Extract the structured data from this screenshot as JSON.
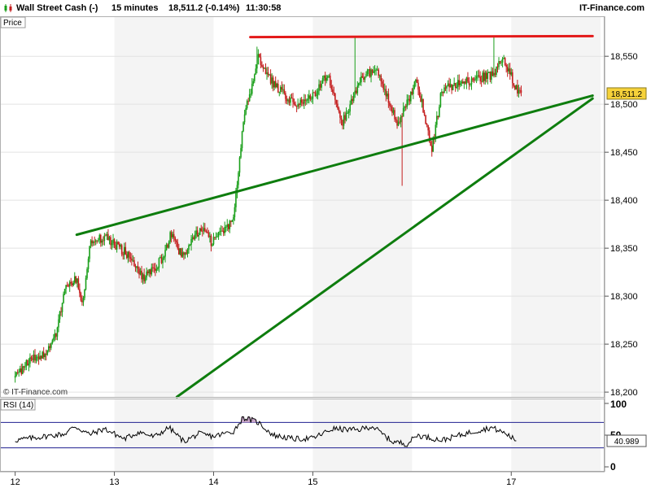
{
  "title_bar": {
    "instrument": "Wall Street Cash (-)",
    "timeframe": "15 minutes",
    "last_quote": "18,511.2 (-0.14%)",
    "time": "11:30:58",
    "brand": "IT-Finance.com"
  },
  "colors": {
    "up_candle": "#1a9f1a",
    "down_candle": "#c41e1e",
    "support_lines": "#0e7d0e",
    "resistance_line": "#e31a1a",
    "rsi_line": "#000000",
    "rsi_band_lines": "#1f1f8f",
    "rsi_overbought_fill": "#c9a6c9",
    "price_tag_bg": "#f6d23a"
  },
  "chart_data": [
    {
      "type": "candlestick",
      "label": "Price",
      "watermark": "© IT-Finance.com",
      "ylim": [
        18195,
        18590
      ],
      "y_ticks": [
        18200,
        18250,
        18300,
        18350,
        18400,
        18450,
        18500,
        18550
      ],
      "y_tick_labels": [
        "18,200",
        "18,250",
        "18,300",
        "18,350",
        "18,400",
        "18,450",
        "18,500",
        "18,550"
      ],
      "x_ticks": [
        {
          "day": 12,
          "label": "12"
        },
        {
          "day": 13,
          "label": "13"
        },
        {
          "day": 14,
          "label": "14"
        },
        {
          "day": 15,
          "label": "15"
        },
        {
          "day": 17,
          "label": "17"
        }
      ],
      "last_price": 18511.2,
      "last_price_label": "18,511.2",
      "session_shading": "alternate days shaded light grey",
      "anchors": [
        {
          "day": 12.0,
          "price": 18215
        },
        {
          "day": 12.12,
          "price": 18232
        },
        {
          "day": 12.3,
          "price": 18240
        },
        {
          "day": 12.42,
          "price": 18262
        },
        {
          "day": 12.5,
          "price": 18310
        },
        {
          "day": 12.62,
          "price": 18318
        },
        {
          "day": 12.68,
          "price": 18293
        },
        {
          "day": 12.75,
          "price": 18355
        },
        {
          "day": 12.9,
          "price": 18362
        },
        {
          "day": 13.12,
          "price": 18345
        },
        {
          "day": 13.3,
          "price": 18318
        },
        {
          "day": 13.47,
          "price": 18338
        },
        {
          "day": 13.57,
          "price": 18364
        },
        {
          "day": 13.68,
          "price": 18342
        },
        {
          "day": 13.88,
          "price": 18372
        },
        {
          "day": 13.98,
          "price": 18356
        },
        {
          "day": 14.2,
          "price": 18378
        },
        {
          "day": 14.3,
          "price": 18483
        },
        {
          "day": 14.45,
          "price": 18548
        },
        {
          "day": 14.6,
          "price": 18522
        },
        {
          "day": 14.8,
          "price": 18500
        },
        {
          "day": 15.0,
          "price": 18508
        },
        {
          "day": 15.15,
          "price": 18532
        },
        {
          "day": 15.3,
          "price": 18482
        },
        {
          "day": 15.5,
          "price": 18530
        },
        {
          "day": 15.65,
          "price": 18535
        },
        {
          "day": 15.85,
          "price": 18479
        },
        {
          "day": 16.05,
          "price": 18525
        },
        {
          "day": 16.2,
          "price": 18452
        },
        {
          "day": 16.3,
          "price": 18515
        },
        {
          "day": 16.55,
          "price": 18525
        },
        {
          "day": 16.8,
          "price": 18530
        },
        {
          "day": 16.93,
          "price": 18548
        },
        {
          "day": 17.05,
          "price": 18515
        },
        {
          "day": 17.1,
          "price": 18511
        }
      ],
      "spikes": [
        {
          "day": 14.44,
          "price": 18560
        },
        {
          "day": 15.42,
          "price": 18570
        },
        {
          "day": 15.9,
          "price": 18415
        },
        {
          "day": 16.82,
          "price": 18571
        }
      ],
      "trendlines": [
        {
          "role": "resistance",
          "color": "#e31a1a",
          "from": {
            "day": 14.37,
            "price": 18570
          },
          "to": {
            "day": 17.82,
            "price": 18571
          }
        },
        {
          "role": "support",
          "color": "#0e7d0e",
          "from": {
            "day": 12.62,
            "price": 18364
          },
          "to": {
            "day": 17.82,
            "price": 18509
          }
        },
        {
          "role": "support",
          "color": "#0e7d0e",
          "from": {
            "day": 13.63,
            "price": 18195
          },
          "to": {
            "day": 17.82,
            "price": 18506
          }
        }
      ]
    },
    {
      "type": "line",
      "label": "RSI (14)",
      "ylim": [
        0,
        100
      ],
      "y_tick_labels": [
        "100",
        "50",
        "0"
      ],
      "levels": [
        70,
        30
      ],
      "last_value": 40.989,
      "last_value_label": "40.989",
      "x": [
        12.0,
        12.3,
        12.5,
        12.6,
        12.75,
        12.9,
        13.1,
        13.25,
        13.4,
        13.55,
        13.7,
        13.85,
        14.0,
        14.2,
        14.3,
        14.45,
        14.6,
        14.8,
        15.0,
        15.2,
        15.45,
        15.6,
        15.8,
        15.95,
        16.05,
        16.3,
        16.6,
        16.8,
        16.95,
        17.05
      ],
      "values": [
        42,
        48,
        52,
        64,
        51,
        60,
        44,
        55,
        47,
        62,
        40,
        52,
        48,
        56,
        78,
        70,
        50,
        44,
        45,
        60,
        58,
        64,
        40,
        36,
        50,
        42,
        55,
        62,
        52,
        41
      ]
    }
  ]
}
